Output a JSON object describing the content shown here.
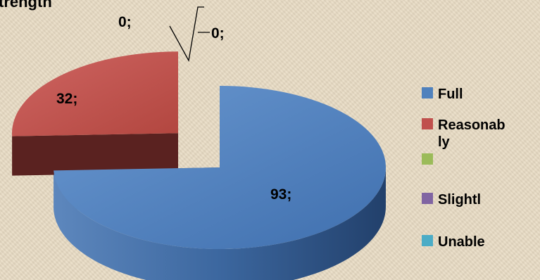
{
  "chart_data": {
    "type": "pie",
    "title": "trength",
    "categories": [
      "Full",
      "Reasonably",
      "",
      "Slightly",
      "Unable"
    ],
    "values": [
      93,
      32,
      0,
      0,
      0
    ],
    "data_labels": [
      "93;",
      "32;",
      "0;",
      "0;",
      ""
    ],
    "colors": [
      "#4f81bd",
      "#c0504d",
      "#9bbb59",
      "#8064a2",
      "#4bacc6"
    ],
    "legend_lines": [
      [
        "Full"
      ],
      [
        "Reasonab",
        "ly"
      ],
      [
        ""
      ],
      [
        "Slightl"
      ],
      [
        "Unable"
      ]
    ],
    "legend_position": "right",
    "exploded_category": "Reasonably"
  }
}
